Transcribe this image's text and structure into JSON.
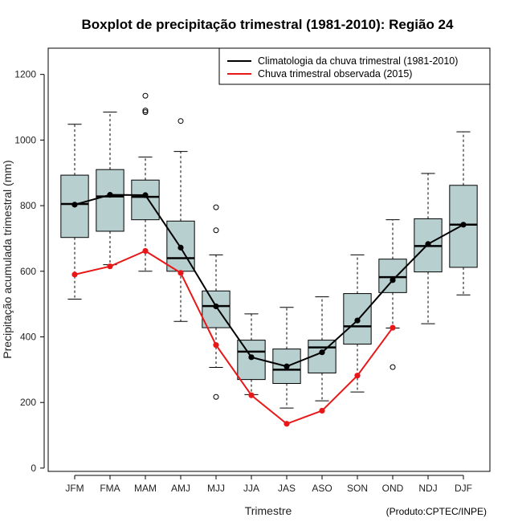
{
  "chart_data": {
    "type": "boxplot",
    "title": "Boxplot de precipitação trimestral (1981-2010): Região 24",
    "xlabel": "Trimestre",
    "ylabel": "Precipitação acumulada trimestral (mm)",
    "ylim": [
      -10,
      1280
    ],
    "yticks": [
      0,
      200,
      400,
      600,
      800,
      1000,
      1200
    ],
    "categories": [
      "JFM",
      "FMA",
      "MAM",
      "AMJ",
      "MJJ",
      "JJA",
      "JAS",
      "ASO",
      "SON",
      "OND",
      "NDJ",
      "DJF"
    ],
    "boxes": [
      {
        "whisker_low": 515,
        "q1": 703,
        "median": 805,
        "q3": 893,
        "whisker_high": 1048,
        "outliers": []
      },
      {
        "whisker_low": 620,
        "q1": 722,
        "median": 828,
        "q3": 910,
        "whisker_high": 1085,
        "outliers": []
      },
      {
        "whisker_low": 600,
        "q1": 757,
        "median": 827,
        "q3": 878,
        "whisker_high": 948,
        "outliers": [
          1085,
          1090,
          1135
        ]
      },
      {
        "whisker_low": 447,
        "q1": 600,
        "median": 640,
        "q3": 753,
        "whisker_high": 965,
        "outliers": [
          1058
        ]
      },
      {
        "whisker_low": 307,
        "q1": 428,
        "median": 494,
        "q3": 540,
        "whisker_high": 650,
        "outliers": [
          795,
          725,
          217
        ]
      },
      {
        "whisker_low": 224,
        "q1": 270,
        "median": 355,
        "q3": 390,
        "whisker_high": 470,
        "outliers": []
      },
      {
        "whisker_low": 183,
        "q1": 258,
        "median": 300,
        "q3": 363,
        "whisker_high": 490,
        "outliers": []
      },
      {
        "whisker_low": 205,
        "q1": 290,
        "median": 368,
        "q3": 390,
        "whisker_high": 522,
        "outliers": []
      },
      {
        "whisker_low": 232,
        "q1": 378,
        "median": 432,
        "q3": 532,
        "whisker_high": 650,
        "outliers": []
      },
      {
        "whisker_low": 427,
        "q1": 535,
        "median": 582,
        "q3": 637,
        "whisker_high": 757,
        "outliers": [
          308
        ]
      },
      {
        "whisker_low": 440,
        "q1": 598,
        "median": 677,
        "q3": 760,
        "whisker_high": 898,
        "outliers": []
      },
      {
        "whisker_low": 528,
        "q1": 612,
        "median": 742,
        "q3": 862,
        "whisker_high": 1025,
        "outliers": []
      }
    ],
    "series": [
      {
        "name": "Climatologia da chuva trimestral (1981-2010)",
        "color": "#000000",
        "values": [
          803,
          833,
          832,
          672,
          493,
          338,
          310,
          353,
          450,
          573,
          683,
          742
        ]
      },
      {
        "name": "Chuva trimestral observada (2015)",
        "color": "#e81818",
        "values": [
          590,
          615,
          662,
          595,
          375,
          222,
          135,
          175,
          282,
          428,
          null,
          null
        ]
      }
    ],
    "box_fill": "#b8cfd0",
    "legend_position": "top-right",
    "credit": "(Produto:CPTEC/INPE)"
  }
}
